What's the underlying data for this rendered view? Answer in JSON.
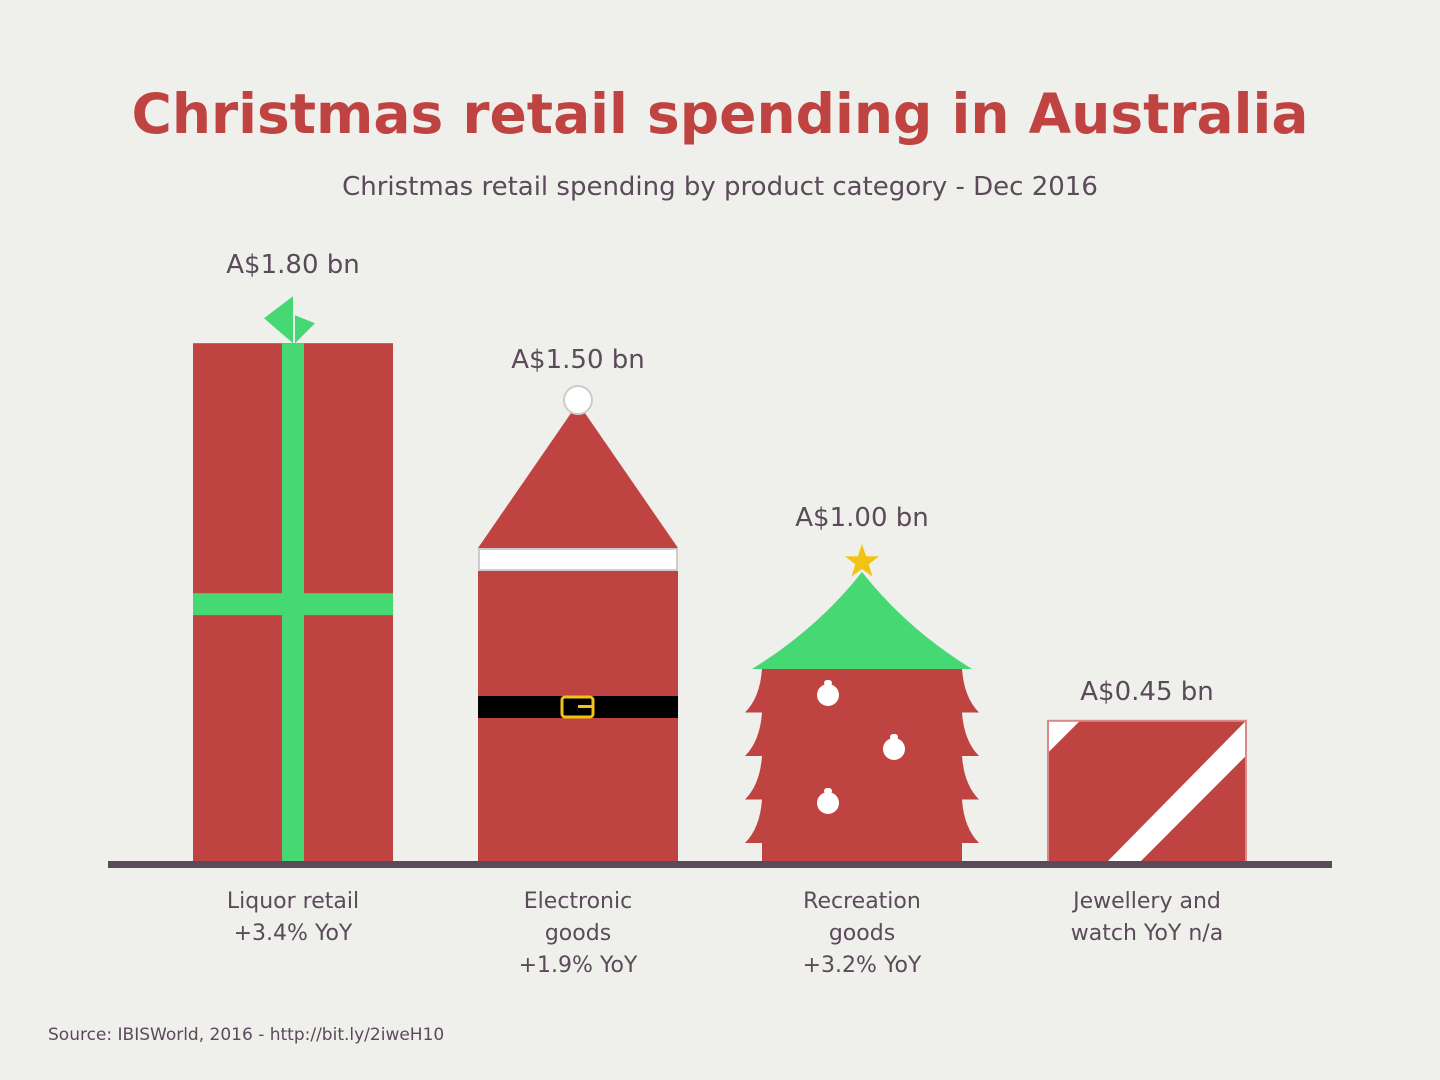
{
  "chart_data": {
    "type": "bar",
    "title": "Christmas retail spending in Australia",
    "subtitle": "Christmas retail spending by product category - Dec 2016",
    "categories": [
      {
        "line1": "Liquor retail",
        "line2": "+3.4% YoY",
        "line3": ""
      },
      {
        "line1": "Electronic",
        "line2": "goods",
        "line3": "+1.9% YoY"
      },
      {
        "line1": "Recreation",
        "line2": "goods",
        "line3": "+3.2% YoY"
      },
      {
        "line1": "Jewellery and",
        "line2": "watch YoY n/a",
        "line3": ""
      }
    ],
    "values": [
      1.8,
      1.5,
      1.0,
      0.45
    ],
    "value_labels": [
      "A$1.80 bn",
      "A$1.50 bn",
      "A$1.00 bn",
      "A$0.45 bn"
    ],
    "unit": "A$ bn",
    "shapes": [
      "gift-box",
      "santa",
      "christmas-tree",
      "jewellery-box"
    ],
    "ylim": [
      0,
      1.9
    ],
    "grid": false,
    "source": "Source: IBISWorld, 2016 - http://bit.ly/2iweH10"
  },
  "colors": {
    "bar": "#bf4340",
    "green": "#45d873",
    "text": "#5a4a5a",
    "axis": "#5a4a5a",
    "star": "#f2c313",
    "belt": "#000000",
    "buckle": "#f2c313",
    "white": "#ffffff"
  }
}
